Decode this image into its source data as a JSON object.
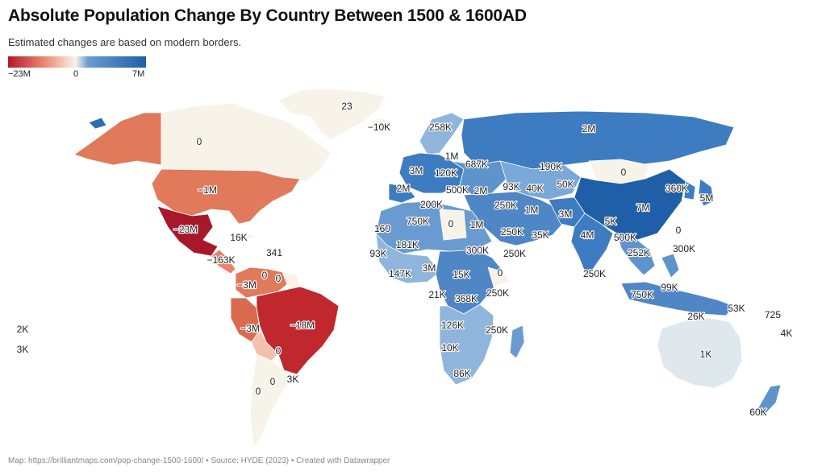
{
  "header": {
    "title": "Absolute Population Change By Country Between 1500 & 1600AD",
    "subtitle": "Estimated changes are based on modern borders."
  },
  "legend": {
    "min_label": "−23M",
    "mid_label": "0",
    "max_label": "7M",
    "colors": [
      "#b2182b",
      "#e8836a",
      "#f7f3e8",
      "#6a9bd0",
      "#1f5fa8"
    ]
  },
  "map": {
    "labels": [
      {
        "name": "greenland",
        "text": "23"
      },
      {
        "name": "iceland",
        "text": "−10K"
      },
      {
        "name": "canada",
        "text": "0"
      },
      {
        "name": "usa",
        "text": "−1M"
      },
      {
        "name": "mexico",
        "text": "−23M"
      },
      {
        "name": "cuba",
        "text": "16K"
      },
      {
        "name": "caribbean",
        "text": "341"
      },
      {
        "name": "central-america",
        "text": "−163K"
      },
      {
        "name": "colombia",
        "text": "−3M"
      },
      {
        "name": "venezuela",
        "text": "0"
      },
      {
        "name": "guianas",
        "text": "0"
      },
      {
        "name": "peru",
        "text": "−3M"
      },
      {
        "name": "brazil",
        "text": "−18M"
      },
      {
        "name": "bolivia",
        "text": "0"
      },
      {
        "name": "paraguay",
        "text": "0"
      },
      {
        "name": "uruguay",
        "text": "3K"
      },
      {
        "name": "argentina",
        "text": "0"
      },
      {
        "name": "hawaii",
        "text": "2K"
      },
      {
        "name": "pacific-islands",
        "text": "3K"
      },
      {
        "name": "scandinavia",
        "text": "258K"
      },
      {
        "name": "russia",
        "text": "2M"
      },
      {
        "name": "germany",
        "text": "1M"
      },
      {
        "name": "poland",
        "text": "687K"
      },
      {
        "name": "france",
        "text": "3M"
      },
      {
        "name": "central-europe",
        "text": "120K"
      },
      {
        "name": "kazakhstan",
        "text": "190K"
      },
      {
        "name": "mongolia",
        "text": "0"
      },
      {
        "name": "spain",
        "text": "2M"
      },
      {
        "name": "italy",
        "text": "500K"
      },
      {
        "name": "turkey",
        "text": "2M"
      },
      {
        "name": "caucasus",
        "text": "93K"
      },
      {
        "name": "uzbekistan",
        "text": "40K"
      },
      {
        "name": "kyrgyzstan",
        "text": "50K"
      },
      {
        "name": "korea",
        "text": "360K"
      },
      {
        "name": "japan",
        "text": "5M"
      },
      {
        "name": "china",
        "text": "7M"
      },
      {
        "name": "taiwan",
        "text": "0"
      },
      {
        "name": "morocco",
        "text": "200K"
      },
      {
        "name": "algeria",
        "text": "750K"
      },
      {
        "name": "libya",
        "text": "0"
      },
      {
        "name": "egypt",
        "text": "1M"
      },
      {
        "name": "iraq",
        "text": "250K"
      },
      {
        "name": "iran",
        "text": "1M"
      },
      {
        "name": "afghanistan",
        "text": "3M"
      },
      {
        "name": "nepal",
        "text": "5K"
      },
      {
        "name": "india",
        "text": "4M"
      },
      {
        "name": "myanmar",
        "text": "500K"
      },
      {
        "name": "saudi-arabia",
        "text": "250K"
      },
      {
        "name": "pakistan",
        "text": "35K"
      },
      {
        "name": "western-sahara",
        "text": "160"
      },
      {
        "name": "mali",
        "text": "181K"
      },
      {
        "name": "senegal",
        "text": "93K"
      },
      {
        "name": "sudan",
        "text": "300K"
      },
      {
        "name": "yemen",
        "text": "250K"
      },
      {
        "name": "guinea",
        "text": "147K"
      },
      {
        "name": "nigeria",
        "text": "3M"
      },
      {
        "name": "ethiopia",
        "text": "0"
      },
      {
        "name": "central-african-rep",
        "text": "15K"
      },
      {
        "name": "sri-lanka",
        "text": "250K"
      },
      {
        "name": "vietnam",
        "text": "252K"
      },
      {
        "name": "philippines-south",
        "text": "300K"
      },
      {
        "name": "cameroon",
        "text": "21K"
      },
      {
        "name": "congo",
        "text": "368K"
      },
      {
        "name": "kenya",
        "text": "250K"
      },
      {
        "name": "malaysia",
        "text": "99K"
      },
      {
        "name": "indonesia",
        "text": "750K"
      },
      {
        "name": "papua",
        "text": "53K"
      },
      {
        "name": "east-timor",
        "text": "26K"
      },
      {
        "name": "solomon-islands",
        "text": "725"
      },
      {
        "name": "angola",
        "text": "126K"
      },
      {
        "name": "tanzania",
        "text": "250K"
      },
      {
        "name": "fiji",
        "text": "4K"
      },
      {
        "name": "namibia",
        "text": "10K"
      },
      {
        "name": "australia",
        "text": "1K"
      },
      {
        "name": "south-africa",
        "text": "86K"
      },
      {
        "name": "new-zealand",
        "text": "60K"
      }
    ]
  },
  "footer": {
    "text": "Map: https://brilliantmaps.com/pop-change-1500-1600/ • Source: HYDE (2023) • Created with Datawrapper"
  }
}
